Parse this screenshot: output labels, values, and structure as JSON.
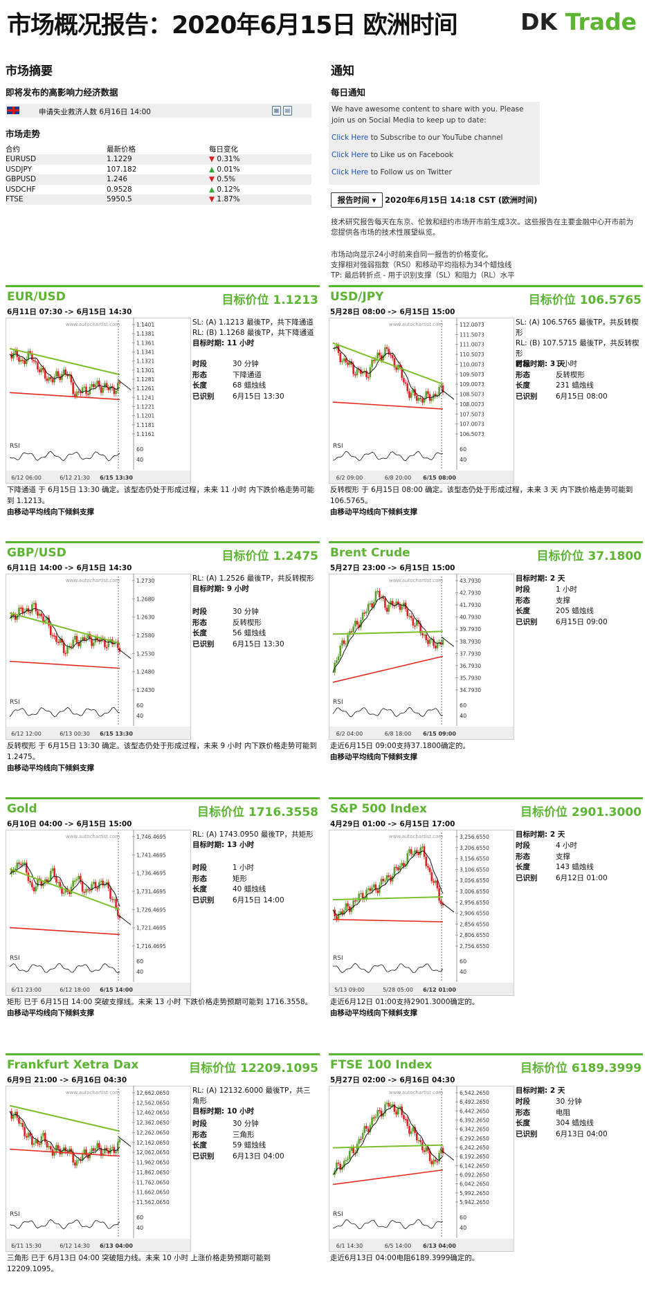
{
  "header": {
    "title": "市场概况报告：2020年6月15日 欧洲时间",
    "logo_dk": "DK",
    "logo_trade": "Trade"
  },
  "summary": {
    "title": "市场摘要",
    "events_title": "即将发布的高影响力经济数据",
    "event": "申请失业救济人数 6月16日 14:00",
    "trend_title": "市场走势",
    "cols": [
      "合约",
      "最新价格",
      "每日变化"
    ],
    "rows": [
      {
        "pair": "EURUSD",
        "price": "1.1229",
        "arrow": "▼",
        "chg": "0.31%",
        "dir": "dn"
      },
      {
        "pair": "USDJPY",
        "price": "107.182",
        "arrow": "▲",
        "chg": "0.01%",
        "dir": "up"
      },
      {
        "pair": "GBPUSD",
        "price": "1.246",
        "arrow": "▼",
        "chg": "0.5%",
        "dir": "dn"
      },
      {
        "pair": "USDCHF",
        "price": "0.9528",
        "arrow": "▲",
        "chg": "0.12%",
        "dir": "up"
      },
      {
        "pair": "FTSE",
        "price": "5950.5",
        "arrow": "▼",
        "chg": "1.87%",
        "dir": "dn"
      }
    ]
  },
  "notice": {
    "title": "通知",
    "daily_title": "每日通知",
    "intro": "We have awesome content to share with you. Please join us on Social Media to keep up to date:",
    "links": [
      {
        "link": "Click Here",
        "text": " to Subscribe to our YouTube channel"
      },
      {
        "link": "Click Here",
        "text": " to Like us on Facebook"
      },
      {
        "link": "Click Here",
        "text": " to Follow us on Twitter"
      }
    ],
    "report_time_label": "报告时间",
    "report_time_value": "2020年6月15日 14:18 CST (欧洲时间)",
    "desc1": "技术研究报告每天在东京、伦敦和纽约市场开市前生成3次。这些报告在主要金融中心开市前为您提供各市场的技术性展望纵览。",
    "desc2": "市场动向显示24小时前来自同一报告的价格变化。",
    "desc3": "支撑相对强弱指数（RSI）和移动平均指标为34个蜡烛线",
    "desc4": "TP: 最后转折点 - 用于识别支撑（SL）和阻力（RL）水平"
  },
  "panels": [
    {
      "name": "EUR/USD",
      "target": "目标价位 1.1213",
      "range": "6月11日 07:30 -> 6月15日 14:30",
      "sl": "SL: (A) 1.1213 最後TP，共下降通道",
      "rl": "RL: (B) 1.1268 最後TP，共下降通道",
      "target_time": "目标时期: 11 小时",
      "kv": [
        [
          "时段",
          "30 分钟"
        ],
        [
          "形态",
          "下降通道"
        ],
        [
          "长度",
          "68 蜡烛线"
        ],
        [
          "已识别",
          "6月15日 13:30"
        ]
      ],
      "yticks": [
        "1.1401",
        "1.1381",
        "1.1361",
        "1.1341",
        "1.1321",
        "1.1301",
        "1.1281",
        "1.1261",
        "1.1241",
        "1.1221",
        "1.1201",
        "1.1181",
        "1.1161"
      ],
      "xticks": [
        "6/12 06:00",
        "6/12 21:30",
        "6/15 13:30"
      ],
      "foot": "下降通道 于 6月15日 13:30 确定。该型态仍处于形成过程，未来 11 小时 内下跌价格走势可能到 1.1213。",
      "foot2": "由移动平均线向下倾斜支撑"
    },
    {
      "name": "USD/JPY",
      "target": "目标价位 106.5765",
      "range": "5月28日 08:00 -> 6月15日 15:00",
      "sl": "SL: (A) 106.5765 最後TP，共反转楔形",
      "rl": "RL: (B) 107.5715 最後TP，共反转楔形",
      "target_time": "目标时期: 3 天",
      "kv": [
        [
          "时段",
          "1 小时"
        ],
        [
          "形态",
          "反转楔形"
        ],
        [
          "长度",
          "231 蜡烛线"
        ],
        [
          "已识别",
          "6月15日 08:00"
        ]
      ],
      "yticks": [
        "112.0073",
        "111.5073",
        "111.0073",
        "110.5073",
        "110.0073",
        "109.5073",
        "109.0073",
        "108.5073",
        "108.0073",
        "107.5073",
        "107.0073",
        "106.5073"
      ],
      "xticks": [
        "6/2 09:00",
        "6/8 20:00",
        "6/15 08:00"
      ],
      "foot": "反转楔形 于 6月15日 08:00 确定。该型态仍处于形成过程，未来 3 天 内下跌价格走势可能到 106.5765。",
      "foot2": "由移动平均线向下倾斜支撑"
    },
    {
      "name": "GBP/USD",
      "target": "目标价位 1.2475",
      "range": "6月11日 14:00 -> 6月15日 14:30",
      "sl": "RL: (A) 1.2526 最後TP，共反转楔形",
      "rl": "",
      "target_time": "目标时期: 9 小时",
      "kv": [
        [
          "时段",
          "30 分钟"
        ],
        [
          "形态",
          "反转楔形"
        ],
        [
          "长度",
          "56 蜡烛线"
        ],
        [
          "已识别",
          "6月15日 13:30"
        ]
      ],
      "yticks": [
        "1.2730",
        "1.2680",
        "1.2630",
        "1.2580",
        "1.2530",
        "1.2480",
        "1.2430"
      ],
      "xticks": [
        "6/12 12:00",
        "6/13 00:30",
        "6/15 13:30"
      ],
      "foot": "反转楔形 于 6月15日 13:30 确定。该型态仍处于形成过程，未来 9 小时 内下跌价格走势可能到 1.2475。",
      "foot2": "由移动平均线向下倾斜支撑"
    },
    {
      "name": "Brent Crude",
      "target": "目标价位 37.1800",
      "range": "5月27日 23:00 -> 6月15日 15:00",
      "sl": "",
      "rl": "",
      "target_time": "目标时期: 2 天",
      "kv": [
        [
          "时段",
          "1 小时"
        ],
        [
          "形态",
          "支撑"
        ],
        [
          "长度",
          "205 蜡烛线"
        ],
        [
          "已识别",
          "6月15日 09:00"
        ]
      ],
      "yticks": [
        "43.7930",
        "42.7930",
        "41.7930",
        "40.7930",
        "39.7930",
        "38.7930",
        "37.7930",
        "36.7930",
        "35.7930",
        "34.7930"
      ],
      "xticks": [
        "6/2 04:00",
        "6/8 18:00",
        "6/15 09:00"
      ],
      "foot": "走近6月15日 09:00支持37.1800确定的。",
      "foot2": "由移动平均线向下倾斜支撑"
    },
    {
      "name": "Gold",
      "target": "目标价位 1716.3558",
      "range": "6月10日 04:00 -> 6月15日 15:00",
      "sl": "RL: (A) 1743.0950 最後TP，共矩形",
      "rl": "",
      "target_time": "目标时期: 13 小时",
      "kv": [
        [
          "时段",
          "1 小时"
        ],
        [
          "形态",
          "矩形"
        ],
        [
          "长度",
          "40 蜡烛线"
        ],
        [
          "已识别",
          "6月15日 14:00"
        ]
      ],
      "yticks": [
        "1,746.4695",
        "1,741.4695",
        "1,736.4695",
        "1,731.4695",
        "1,726.4695",
        "1,721.4695",
        "1,716.4695"
      ],
      "xticks": [
        "6/11 23:00",
        "6/12 18:00",
        "6/15 14:00"
      ],
      "foot": "矩形 已于 6月15日 14:00 突破支撑线。未来 13 小时 下跌价格走势预期可能到 1716.3558。",
      "foot2": "由移动平均线向下倾斜支撑"
    },
    {
      "name": "S&P 500 Index",
      "target": "目标价位 2901.3000",
      "range": "4月29日 01:00 -> 6月15日 17:00",
      "sl": "",
      "rl": "",
      "target_time": "目标时期: 2 天",
      "kv": [
        [
          "时段",
          "4 小时"
        ],
        [
          "形态",
          "支撑"
        ],
        [
          "长度",
          "143 蜡烛线"
        ],
        [
          "已识别",
          "6月12日 01:00"
        ]
      ],
      "yticks": [
        "3,256.6550",
        "3,206.6550",
        "3,156.6550",
        "3,106.6550",
        "3,056.6550",
        "3,006.6550",
        "2,956.6550",
        "2,906.6550",
        "2,856.6550",
        "2,806.6550",
        "2,756.6550"
      ],
      "xticks": [
        "5/13 09:00",
        "5/28 05:00",
        "6/12 01:00"
      ],
      "foot": "走近6月12日 01:00支持2901.3000确定的。",
      "foot2": "由移动平均线向下倾斜支撑"
    },
    {
      "name": "Frankfurt Xetra Dax",
      "target": "目标价位 12209.1095",
      "range": "6月9日 21:00 -> 6月16日 04:30",
      "sl": "RL: (A) 12132.6000 最後TP，共三角形",
      "rl": "",
      "target_time": "目标时期: 10 小时",
      "kv": [
        [
          "时段",
          "30 分钟"
        ],
        [
          "形态",
          "三角形"
        ],
        [
          "长度",
          "59 蜡烛线"
        ],
        [
          "已识别",
          "6月13日 04:00"
        ]
      ],
      "yticks": [
        "12,662.0650",
        "12,562.0650",
        "12,462.0650",
        "12,362.0650",
        "12,262.0650",
        "12,162.0650",
        "12,062.0650",
        "11,962.0650",
        "11,862.0650",
        "11,762.0650",
        "11,662.0650",
        "11,562.0650"
      ],
      "xticks": [
        "6/11 15:30",
        "6/12 14:30",
        "6/13 04:00"
      ],
      "foot": "三角形 已于 6月13日 04:00 突破阻力线。未来 10 小时 上涨价格走势预期可能到 12209.1095。",
      "foot2": ""
    },
    {
      "name": "FTSE 100 Index",
      "target": "目标价位 6189.3999",
      "range": "5月27日 02:00 -> 6月16日 04:30",
      "sl": "",
      "rl": "",
      "target_time": "目标时期: 2 天",
      "kv": [
        [
          "时段",
          "30 分钟"
        ],
        [
          "形态",
          "电阻"
        ],
        [
          "长度",
          "304 蜡烛线"
        ],
        [
          "已识别",
          "6月13日 04:00"
        ]
      ],
      "yticks": [
        "6,542.2650",
        "6,492.2650",
        "6,442.2650",
        "6,392.2650",
        "6,342.2650",
        "6,292.2650",
        "6,242.2650",
        "6,192.2650",
        "6,142.2650",
        "6,092.2650",
        "6,042.2650",
        "5,992.2650",
        "5,942.2650"
      ],
      "xticks": [
        "6/1 14:30",
        "6/5 14:00",
        "6/13 04:00"
      ],
      "foot": "走近6月13日 04:00电阻6189.3999确定的。",
      "foot2": ""
    }
  ],
  "chart_common": {
    "rsi_label": "RSI",
    "rsi_60": "60",
    "rsi_40": "40",
    "watermark": "www.autochartist.com"
  },
  "colors": {
    "brand_green": "#5cb531",
    "down_red": "#d51e1e",
    "up_green": "#33aa33",
    "trend_green": "#7cbf2a",
    "trend_red": "#e8261c"
  }
}
